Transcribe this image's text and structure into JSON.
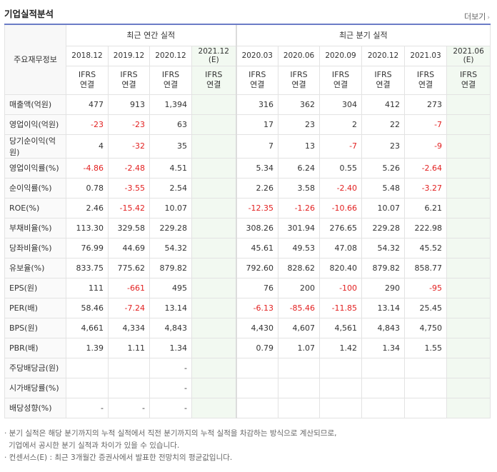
{
  "header": {
    "title": "기업실적분석",
    "more_label": "더보기",
    "more_icon": "chevron-right-icon"
  },
  "table": {
    "row_header_label": "주요재무정보",
    "annual_group": "최근 연간 실적",
    "quarter_group": "최근 분기 실적",
    "annual_periods": [
      "2018.12",
      "2019.12",
      "2020.12",
      "2021.12 (E)"
    ],
    "quarter_periods": [
      "2020.03",
      "2020.06",
      "2020.09",
      "2020.12",
      "2021.03",
      "2021.06 (E)"
    ],
    "basis_line1": "IFRS",
    "basis_line2": "연결",
    "rows": [
      {
        "label": "매출액(억원)",
        "values": [
          "477",
          "913",
          "1,394",
          "",
          "316",
          "362",
          "304",
          "412",
          "273",
          ""
        ]
      },
      {
        "label": "영업이익(억원)",
        "values": [
          "-23",
          "-23",
          "63",
          "",
          "17",
          "23",
          "2",
          "22",
          "-7",
          ""
        ]
      },
      {
        "label": "당기순이익(억원)",
        "values": [
          "4",
          "-32",
          "35",
          "",
          "7",
          "13",
          "-7",
          "23",
          "-9",
          ""
        ]
      },
      {
        "label": "영업이익률(%)",
        "values": [
          "-4.86",
          "-2.48",
          "4.51",
          "",
          "5.34",
          "6.24",
          "0.55",
          "5.26",
          "-2.64",
          ""
        ]
      },
      {
        "label": "순이익률(%)",
        "values": [
          "0.78",
          "-3.55",
          "2.54",
          "",
          "2.26",
          "3.58",
          "-2.40",
          "5.48",
          "-3.27",
          ""
        ]
      },
      {
        "label": "ROE(%)",
        "values": [
          "2.46",
          "-15.42",
          "10.07",
          "",
          "-12.35",
          "-1.26",
          "-10.66",
          "10.07",
          "6.21",
          ""
        ]
      },
      {
        "label": "부채비율(%)",
        "values": [
          "113.30",
          "329.58",
          "229.28",
          "",
          "308.26",
          "301.94",
          "276.65",
          "229.28",
          "222.98",
          ""
        ]
      },
      {
        "label": "당좌비율(%)",
        "values": [
          "76.99",
          "44.69",
          "54.32",
          "",
          "45.61",
          "49.53",
          "47.08",
          "54.32",
          "45.52",
          ""
        ]
      },
      {
        "label": "유보율(%)",
        "values": [
          "833.75",
          "775.62",
          "879.82",
          "",
          "792.60",
          "828.62",
          "820.40",
          "879.82",
          "858.77",
          ""
        ]
      },
      {
        "label": "EPS(원)",
        "values": [
          "111",
          "-661",
          "495",
          "",
          "76",
          "200",
          "-100",
          "290",
          "-95",
          ""
        ]
      },
      {
        "label": "PER(배)",
        "values": [
          "58.46",
          "-7.24",
          "13.14",
          "",
          "-6.13",
          "-85.46",
          "-11.85",
          "13.14",
          "25.45",
          ""
        ]
      },
      {
        "label": "BPS(원)",
        "values": [
          "4,661",
          "4,334",
          "4,843",
          "",
          "4,430",
          "4,607",
          "4,561",
          "4,843",
          "4,750",
          ""
        ]
      },
      {
        "label": "PBR(배)",
        "values": [
          "1.39",
          "1.11",
          "1.34",
          "",
          "0.79",
          "1.07",
          "1.42",
          "1.34",
          "1.55",
          ""
        ]
      },
      {
        "label": "주당배당금(원)",
        "values": [
          "",
          "",
          "-",
          "",
          "",
          "",
          "",
          "",
          "",
          ""
        ]
      },
      {
        "label": "시가배당률(%)",
        "values": [
          "",
          "",
          "-",
          "",
          "",
          "",
          "",
          "",
          "",
          ""
        ]
      },
      {
        "label": "배당성향(%)",
        "values": [
          "-",
          "-",
          "-",
          "",
          "",
          "",
          "",
          "",
          "",
          ""
        ]
      }
    ]
  },
  "notes": [
    "· 분기 실적은 해당 분기까지의 누적 실적에서 직전 분기까지의 누적 실적을 차감하는 방식으로 계산되므로,",
    "  기업에서 공시한 분기 실적과 차이가 있을 수 있습니다.",
    "· 컨센서스(E) : 최근 3개월간 증권사에서 발표한 전망치의 평균값입니다."
  ],
  "colors": {
    "negative": "#e21f1f",
    "ifrs": "#e9561f",
    "estimate_bg": "#f2f9f1",
    "top_border": "#6b7cc6"
  }
}
